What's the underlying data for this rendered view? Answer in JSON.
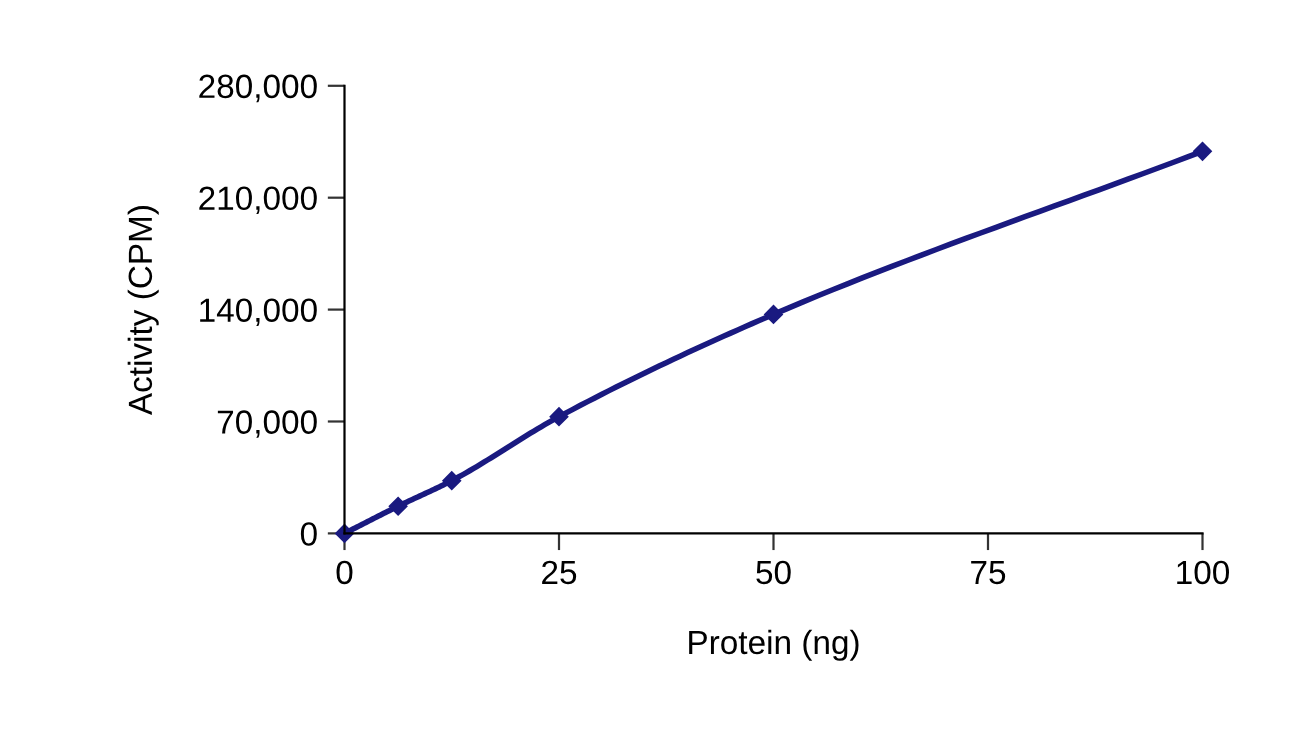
{
  "chart_data": {
    "type": "line",
    "xlabel": "Protein (ng)",
    "ylabel": "Activity (CPM)",
    "x": [
      0,
      6.25,
      12.5,
      25,
      50,
      100
    ],
    "series": [
      {
        "color": "#1a1a80",
        "values": [
          0,
          17000,
          33000,
          73000,
          137000,
          239000
        ]
      }
    ],
    "xlim": [
      0,
      100
    ],
    "xticks": [
      0,
      25,
      50,
      75,
      100
    ],
    "ylim": [
      0,
      280000
    ],
    "yticks": [
      {
        "value": 0,
        "label": "0"
      },
      {
        "value": 70000,
        "label": "70,000"
      },
      {
        "value": 140000,
        "label": "140,000"
      },
      {
        "value": 210000,
        "label": "210,000"
      },
      {
        "value": 280000,
        "label": "280,000"
      }
    ],
    "grid": false,
    "legend": false,
    "marker": "diamond",
    "line_style": "solid"
  }
}
